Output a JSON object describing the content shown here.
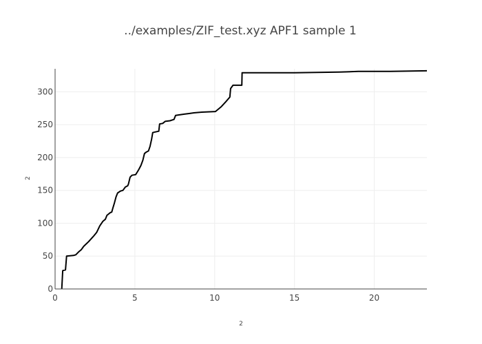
{
  "chart_data": {
    "type": "line",
    "title": "../examples/ZIF_test.xyz APF1 sample 1",
    "xlabel": "2",
    "ylabel": "2",
    "xlim": [
      0,
      23.3
    ],
    "ylim": [
      0,
      335
    ],
    "xticks": [
      0,
      5,
      10,
      15,
      20
    ],
    "yticks": [
      0,
      50,
      100,
      150,
      200,
      250,
      300
    ],
    "grid": true,
    "line_color": "#000000",
    "series": [
      {
        "values_xy": [
          [
            0.42,
            0
          ],
          [
            0.48,
            28
          ],
          [
            0.65,
            29
          ],
          [
            0.72,
            50
          ],
          [
            1.15,
            51
          ],
          [
            1.3,
            52
          ],
          [
            1.5,
            57
          ],
          [
            1.65,
            60
          ],
          [
            1.8,
            65
          ],
          [
            2.1,
            72
          ],
          [
            2.4,
            80
          ],
          [
            2.6,
            86
          ],
          [
            2.8,
            96
          ],
          [
            3.0,
            103
          ],
          [
            3.15,
            106
          ],
          [
            3.25,
            112
          ],
          [
            3.45,
            116
          ],
          [
            3.55,
            117
          ],
          [
            3.62,
            123
          ],
          [
            3.72,
            131
          ],
          [
            3.82,
            140
          ],
          [
            3.92,
            146
          ],
          [
            4.1,
            149
          ],
          [
            4.25,
            150
          ],
          [
            4.4,
            155
          ],
          [
            4.55,
            157
          ],
          [
            4.6,
            160
          ],
          [
            4.7,
            170
          ],
          [
            4.82,
            173
          ],
          [
            5.05,
            174
          ],
          [
            5.15,
            178
          ],
          [
            5.25,
            182
          ],
          [
            5.38,
            188
          ],
          [
            5.5,
            196
          ],
          [
            5.6,
            206
          ],
          [
            5.7,
            208
          ],
          [
            5.85,
            210
          ],
          [
            5.95,
            217
          ],
          [
            6.05,
            228
          ],
          [
            6.12,
            238
          ],
          [
            6.3,
            239
          ],
          [
            6.5,
            240
          ],
          [
            6.55,
            251
          ],
          [
            6.75,
            252
          ],
          [
            6.9,
            255
          ],
          [
            7.2,
            256
          ],
          [
            7.45,
            258
          ],
          [
            7.55,
            264
          ],
          [
            7.8,
            265
          ],
          [
            8.1,
            266
          ],
          [
            8.4,
            267
          ],
          [
            8.7,
            268
          ],
          [
            9.2,
            269
          ],
          [
            10.05,
            270
          ],
          [
            10.4,
            277
          ],
          [
            10.7,
            285
          ],
          [
            10.95,
            292
          ],
          [
            11.0,
            305
          ],
          [
            11.15,
            310
          ],
          [
            11.7,
            310
          ],
          [
            11.72,
            329
          ],
          [
            15.0,
            329
          ],
          [
            17.8,
            330
          ],
          [
            19.0,
            331
          ],
          [
            21.0,
            331
          ],
          [
            23.3,
            332
          ]
        ]
      }
    ]
  }
}
